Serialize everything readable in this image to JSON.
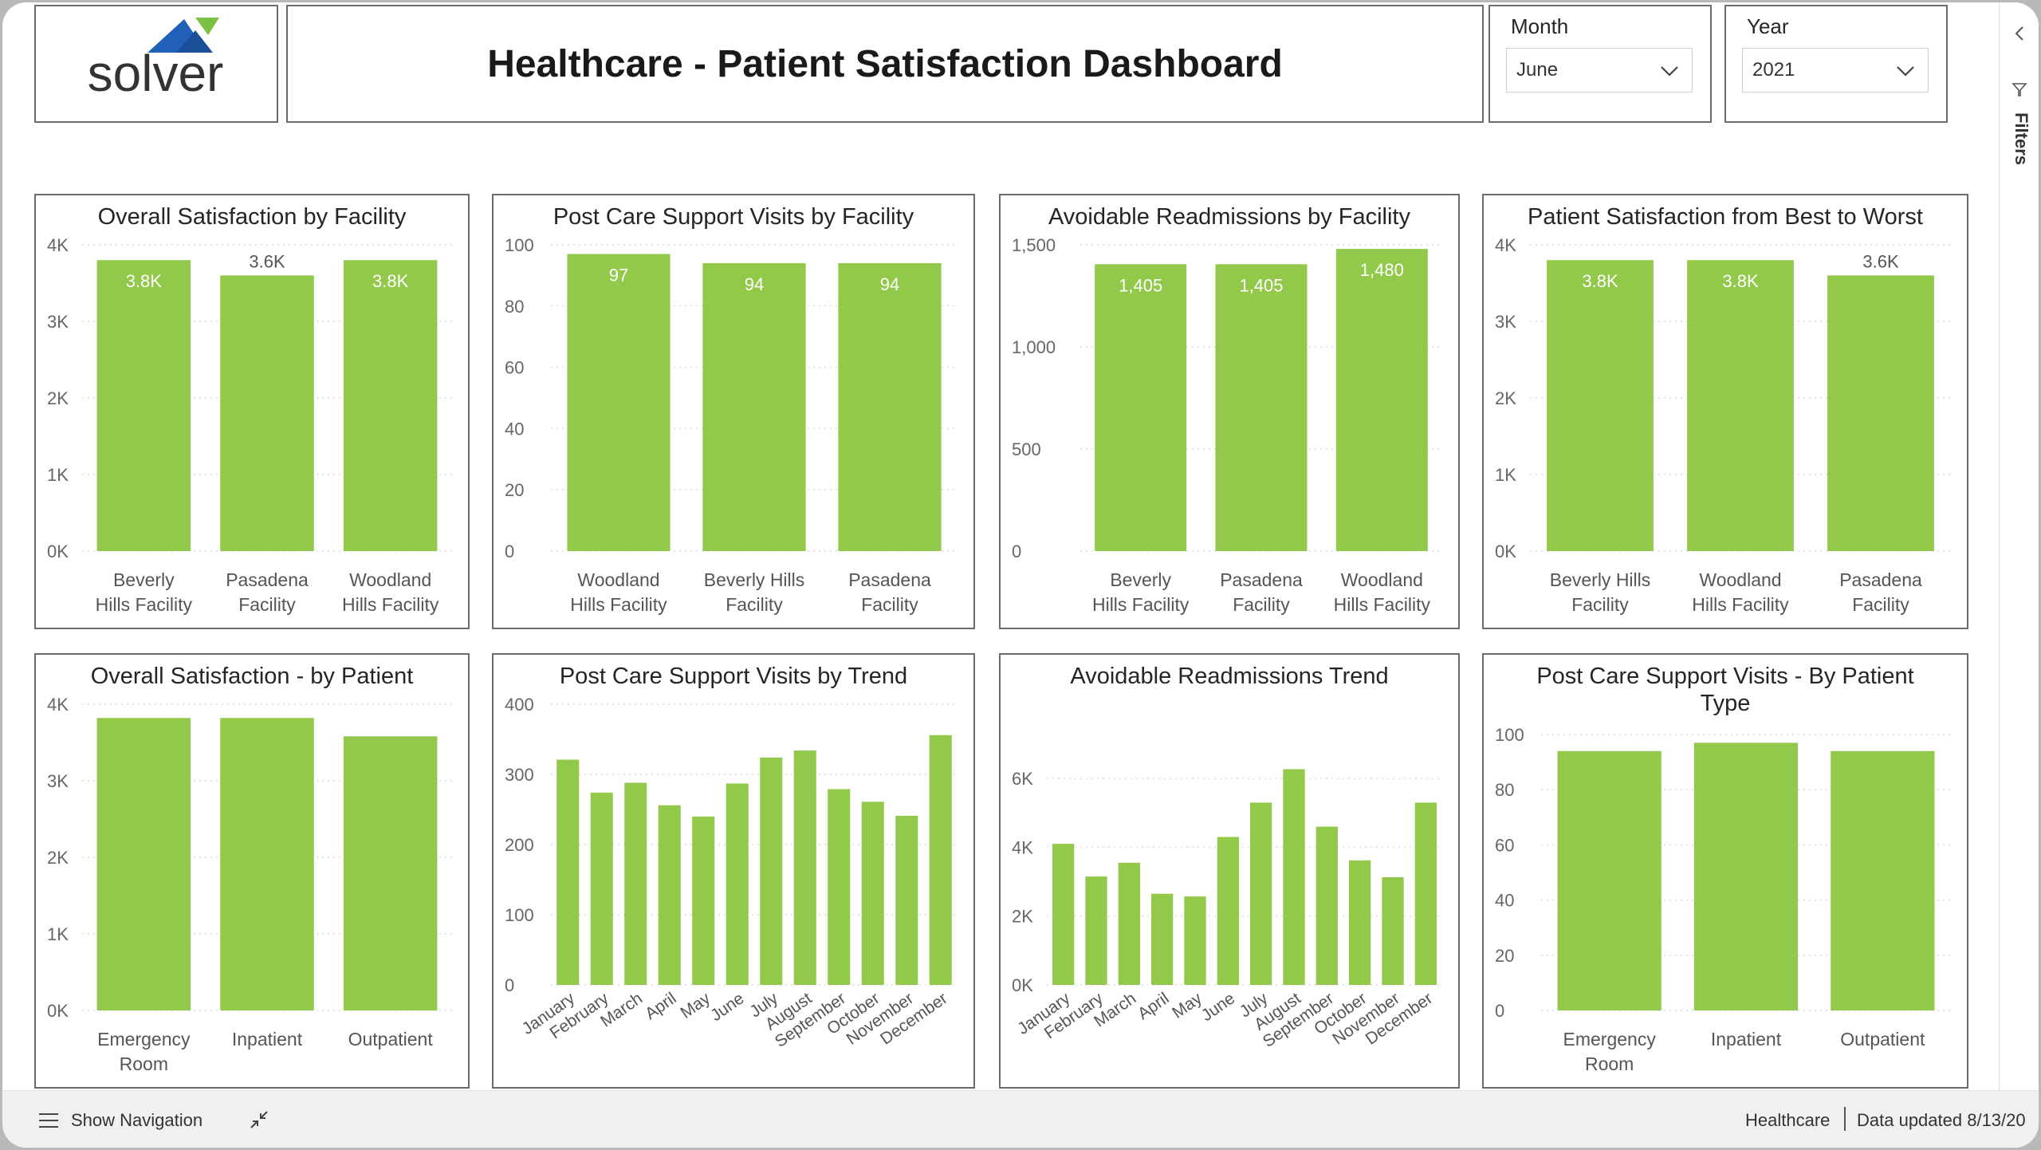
{
  "header": {
    "title": "Healthcare - Patient Satisfaction Dashboard",
    "logo_text": "solver"
  },
  "slicers": {
    "month": {
      "label": "Month",
      "value": "June"
    },
    "year": {
      "label": "Year",
      "value": "2021"
    }
  },
  "filters_pane": {
    "label": "Filters"
  },
  "bottom_bar": {
    "show_navigation": "Show Navigation",
    "report_name": "Healthcare",
    "data_updated": "Data updated 8/13/20"
  },
  "colors": {
    "bar": "#92c94a",
    "frame": "#b9b9b9"
  },
  "chart_data": [
    {
      "id": "c1",
      "type": "bar",
      "title": "Overall Satisfaction by Facility",
      "categories": [
        "Beverly\nHills Facility",
        "Pasadena\nFacility",
        "Woodland\nHills Facility"
      ],
      "values": [
        3800,
        3600,
        3800
      ],
      "data_labels": [
        "3.8K",
        "3.6K",
        "3.8K"
      ],
      "ylim": [
        0,
        4000
      ],
      "ticks": [
        0,
        1000,
        2000,
        3000,
        4000
      ],
      "tick_labels": [
        "0K",
        "1K",
        "2K",
        "3K",
        "4K"
      ]
    },
    {
      "id": "c2",
      "type": "bar",
      "title": "Post Care Support Visits by Facility",
      "categories": [
        "Woodland\nHills Facility",
        "Beverly Hills\nFacility",
        "Pasadena\nFacility"
      ],
      "values": [
        97,
        94,
        94
      ],
      "data_labels": [
        "97",
        "94",
        "94"
      ],
      "ylim": [
        0,
        100
      ],
      "ticks": [
        0,
        20,
        40,
        60,
        80,
        100
      ],
      "tick_labels": [
        "0",
        "20",
        "40",
        "60",
        "80",
        "100"
      ]
    },
    {
      "id": "c3",
      "type": "bar",
      "title": "Avoidable Readmissions by Facility",
      "categories": [
        "Beverly\nHills Facility",
        "Pasadena\nFacility",
        "Woodland\nHills Facility"
      ],
      "values": [
        1405,
        1405,
        1480
      ],
      "data_labels": [
        "1,405",
        "1,405",
        "1,480"
      ],
      "ylim": [
        0,
        1500
      ],
      "ticks": [
        0,
        500,
        1000,
        1500
      ],
      "tick_labels": [
        "0",
        "500",
        "1,000",
        "1,500"
      ]
    },
    {
      "id": "c4",
      "type": "bar",
      "title": "Patient Satisfaction from Best to Worst",
      "categories": [
        "Beverly Hills\nFacility",
        "Woodland\nHills Facility",
        "Pasadena\nFacility"
      ],
      "values": [
        3800,
        3800,
        3600
      ],
      "data_labels": [
        "3.8K",
        "3.8K",
        "3.6K"
      ],
      "ylim": [
        0,
        4000
      ],
      "ticks": [
        0,
        1000,
        2000,
        3000,
        4000
      ],
      "tick_labels": [
        "0K",
        "1K",
        "2K",
        "3K",
        "4K"
      ]
    },
    {
      "id": "c5",
      "type": "bar",
      "title": "Overall Satisfaction - by Patient",
      "categories": [
        "Emergency\nRoom",
        "Inpatient",
        "Outpatient"
      ],
      "values": [
        3820,
        3820,
        3580
      ],
      "data_labels": [],
      "ylim": [
        0,
        4000
      ],
      "ticks": [
        0,
        1000,
        2000,
        3000,
        4000
      ],
      "tick_labels": [
        "0K",
        "1K",
        "2K",
        "3K",
        "4K"
      ]
    },
    {
      "id": "c6",
      "type": "bar",
      "title": "Post Care Support Visits by Trend",
      "categories": [
        "January",
        "February",
        "March",
        "April",
        "May",
        "June",
        "July",
        "August",
        "September",
        "October",
        "November",
        "December"
      ],
      "values": [
        321,
        274,
        288,
        256,
        240,
        287,
        324,
        334,
        279,
        261,
        241,
        356
      ],
      "data_labels": [],
      "ylim": [
        0,
        400
      ],
      "ticks": [
        0,
        100,
        200,
        300,
        400
      ],
      "tick_labels": [
        "0",
        "100",
        "200",
        "300",
        "400"
      ]
    },
    {
      "id": "c7",
      "type": "bar",
      "title": "Avoidable Readmissions Trend",
      "categories": [
        "January",
        "February",
        "March",
        "April",
        "May",
        "June",
        "July",
        "August",
        "September",
        "October",
        "November",
        "December"
      ],
      "values": [
        4100,
        3150,
        3550,
        2650,
        2570,
        4300,
        5300,
        6270,
        4600,
        3620,
        3130,
        5300
      ],
      "data_labels": [],
      "ylim": [
        0,
        7000
      ],
      "ticks": [
        0,
        2000,
        4000,
        6000
      ],
      "tick_labels": [
        "0K",
        "2K",
        "4K",
        "6K"
      ]
    },
    {
      "id": "c8",
      "type": "bar",
      "title": "Post Care Support Visits - By Patient\nType",
      "categories": [
        "Emergency\nRoom",
        "Inpatient",
        "Outpatient"
      ],
      "values": [
        94,
        97,
        94
      ],
      "data_labels": [],
      "ylim": [
        0,
        100
      ],
      "ticks": [
        0,
        20,
        40,
        60,
        80,
        100
      ],
      "tick_labels": [
        "0",
        "20",
        "40",
        "60",
        "80",
        "100"
      ]
    }
  ]
}
